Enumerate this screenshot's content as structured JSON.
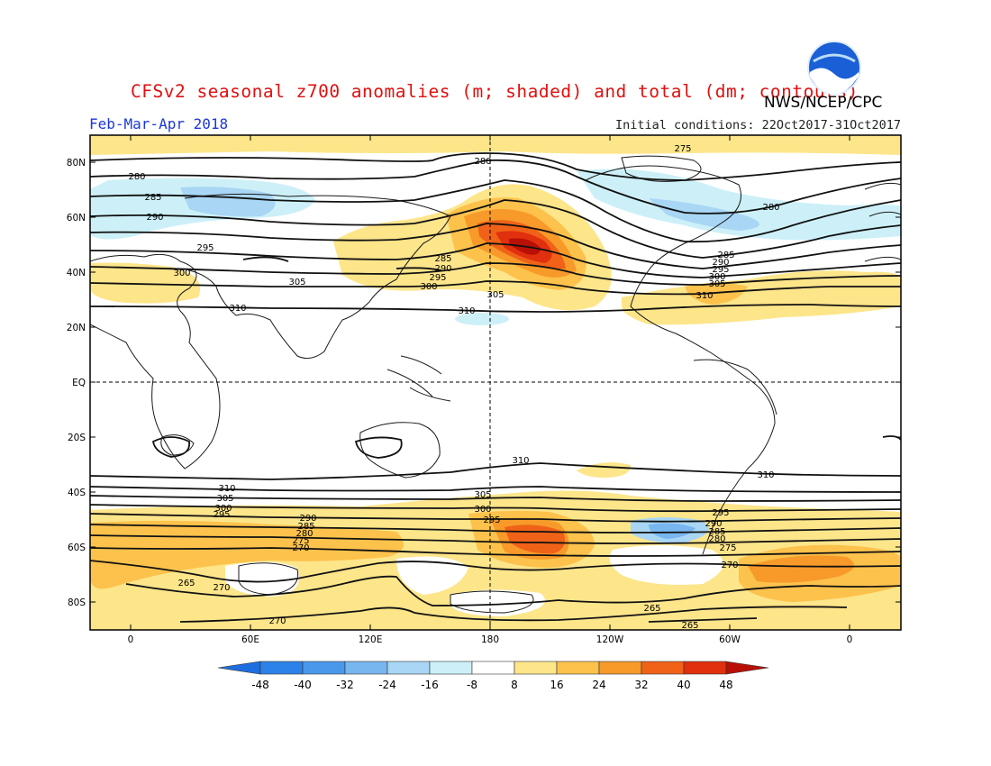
{
  "header": {
    "title": "CFSv2 seasonal z700 anomalies (m; shaded) and total (dm; contours)",
    "agency": "NWS/NCEP/CPC",
    "period": "Feb-Mar-Apr 2018",
    "initial_conditions": "Initial conditions: 22Oct2017-31Oct2017",
    "logo_text": "NOAA"
  },
  "map": {
    "lat_labels": [
      "80N",
      "60N",
      "40N",
      "20N",
      "EQ",
      "20S",
      "40S",
      "60S",
      "80S"
    ],
    "lon_labels": [
      "0",
      "60E",
      "120E",
      "180",
      "120W",
      "60W",
      "0"
    ],
    "contour_labels_nh": [
      "275",
      "280",
      "280",
      "280",
      "285",
      "285",
      "285",
      "290",
      "290",
      "290",
      "295",
      "295",
      "295",
      "300",
      "300",
      "300",
      "305",
      "305",
      "305",
      "310",
      "310",
      "310"
    ],
    "contour_labels_sh": [
      "310",
      "310",
      "310",
      "305",
      "305",
      "300",
      "300",
      "295",
      "295",
      "295",
      "290",
      "290",
      "285",
      "285",
      "280",
      "280",
      "275",
      "275",
      "270",
      "270",
      "270",
      "270",
      "265",
      "265",
      "265"
    ]
  },
  "colorbar": {
    "levels": [
      "-48",
      "-40",
      "-32",
      "-24",
      "-16",
      "-8",
      "8",
      "16",
      "24",
      "32",
      "40",
      "48"
    ],
    "colors": [
      "#1e6ee0",
      "#2c82e8",
      "#4a98ec",
      "#78b6f0",
      "#a8d6f4",
      "#cdf0f8",
      "#ffffff",
      "#fde58a",
      "#fcc24c",
      "#f79a2a",
      "#f06218",
      "#e0300e",
      "#b81006"
    ]
  },
  "colors": {
    "title": "#e01010",
    "period": "#1c37d8",
    "anom_pos_1": "#fde58a",
    "anom_pos_2": "#fcc24c",
    "anom_pos_3": "#f79a2a",
    "anom_pos_4": "#f06218",
    "anom_pos_5": "#e0300e",
    "anom_pos_6": "#b81006",
    "anom_neg_1": "#cdf0f8",
    "anom_neg_2": "#a8d6f4",
    "anom_neg_3": "#78b6f0"
  }
}
